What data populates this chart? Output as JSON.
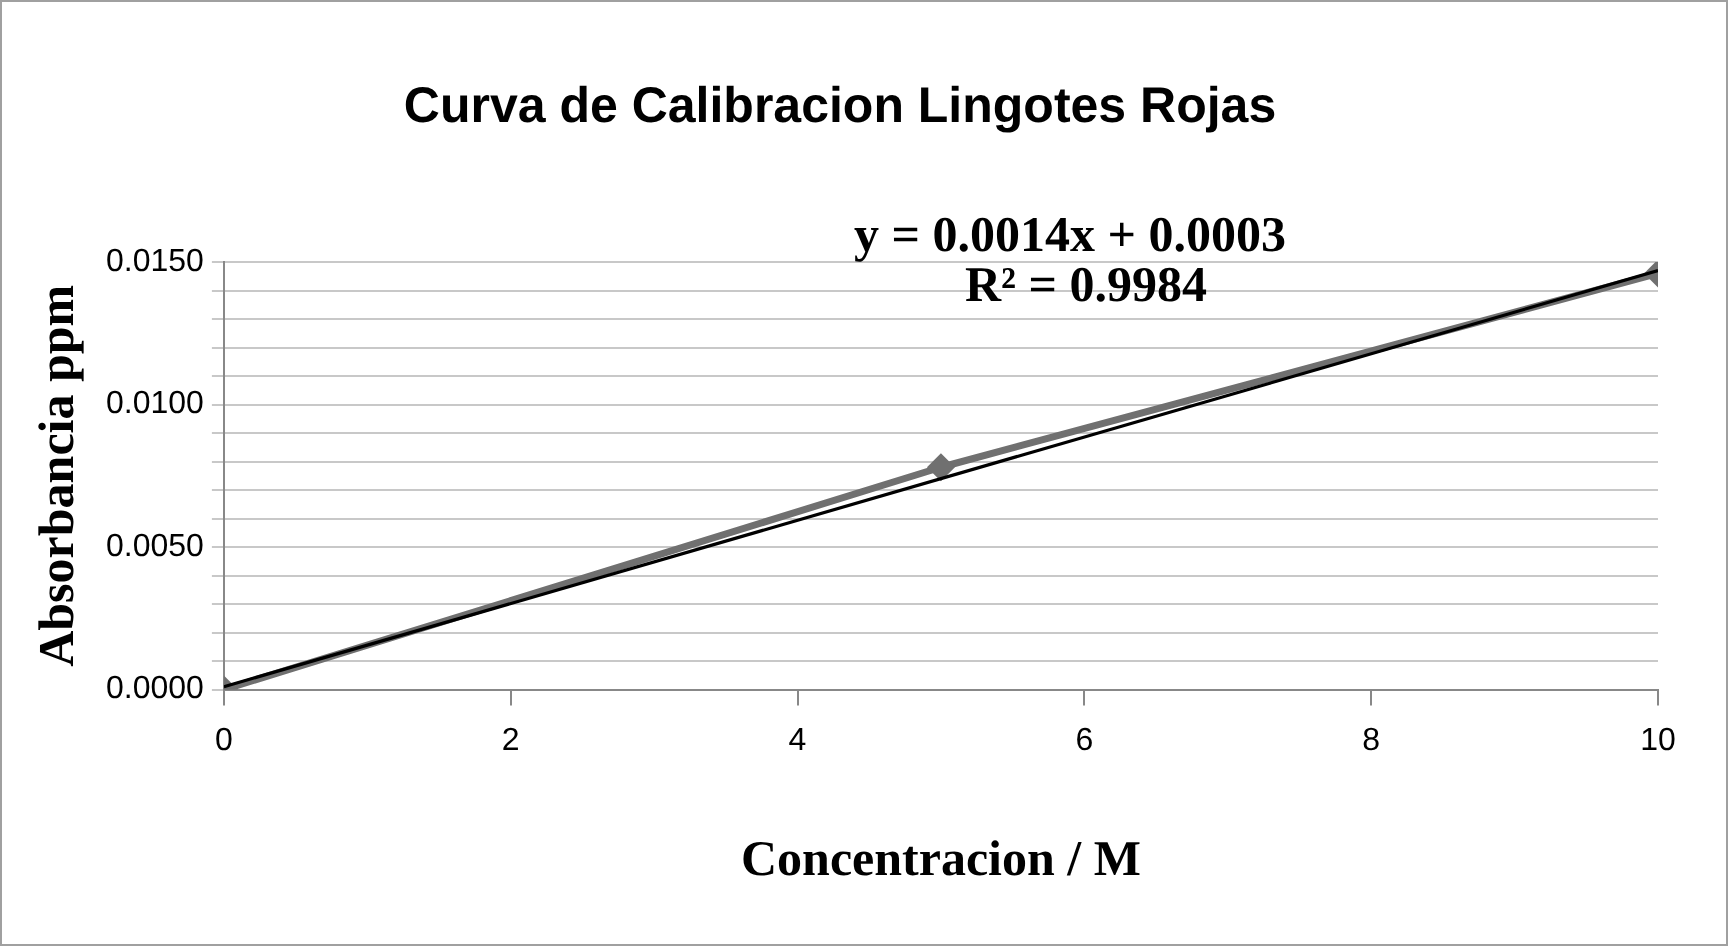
{
  "chart_data": {
    "type": "line",
    "title": "Curva de Calibracion Lingotes Rojas",
    "xlabel": "Concentracion / M",
    "ylabel": "Absorbancia ppm",
    "annotations": [
      "y = 0.0014x + 0.0003",
      "R² = 0.9984"
    ],
    "x": [
      0,
      5,
      10
    ],
    "series": [
      {
        "color": "#707070",
        "marker": "diamond",
        "values": [
          0,
          0.0078,
          0.0146
        ]
      },
      {
        "color": "#000000",
        "marker": "none",
        "x": [
          0,
          10
        ],
        "values": [
          0.0001,
          0.0147
        ]
      }
    ],
    "xlim": [
      0,
      10
    ],
    "xticks": [
      0,
      2,
      4,
      6,
      8,
      10
    ],
    "ylim": [
      0,
      0.015
    ],
    "yticks": [
      {
        "value": 0,
        "label": "0.0000"
      },
      {
        "value": 0.001,
        "label": null
      },
      {
        "value": 0.002,
        "label": null
      },
      {
        "value": 0.003,
        "label": null
      },
      {
        "value": 0.004,
        "label": null
      },
      {
        "value": 0.005,
        "label": "0.0050"
      },
      {
        "value": 0.006,
        "label": null
      },
      {
        "value": 0.007,
        "label": null
      },
      {
        "value": 0.008,
        "label": null
      },
      {
        "value": 0.009,
        "label": null
      },
      {
        "value": 0.01,
        "label": "0.0100"
      },
      {
        "value": 0.011,
        "label": null
      },
      {
        "value": 0.012,
        "label": null
      },
      {
        "value": 0.013,
        "label": null
      },
      {
        "value": 0.014,
        "label": null
      },
      {
        "value": 0.015,
        "label": "0.0150"
      }
    ],
    "grid": "y",
    "legend": false
  }
}
